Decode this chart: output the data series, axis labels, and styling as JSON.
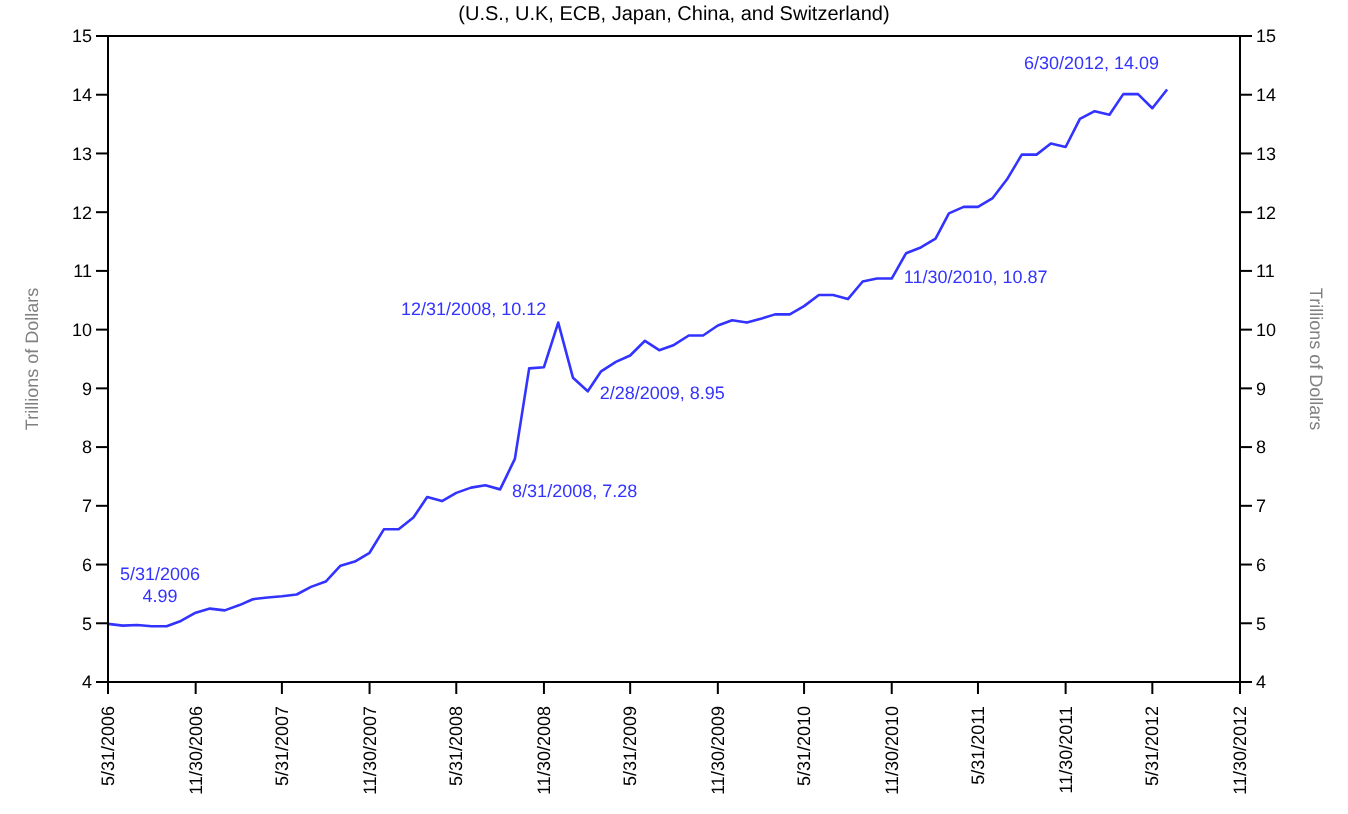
{
  "chart_data": {
    "type": "line",
    "subtitle": "(U.S., U.K, ECB, Japan, China, and Switzerland)",
    "ylabel": "Trillions of Dollars",
    "y2label": "Trillions of Dollars",
    "x": [
      "2006-05",
      "2006-06",
      "2006-07",
      "2006-08",
      "2006-09",
      "2006-10",
      "2006-11",
      "2006-12",
      "2007-01",
      "2007-02",
      "2007-03",
      "2007-04",
      "2007-05",
      "2007-06",
      "2007-07",
      "2007-08",
      "2007-09",
      "2007-10",
      "2007-11",
      "2007-12",
      "2008-01",
      "2008-02",
      "2008-03",
      "2008-04",
      "2008-05",
      "2008-06",
      "2008-07",
      "2008-08",
      "2008-09",
      "2008-10",
      "2008-11",
      "2008-12",
      "2009-01",
      "2009-02",
      "2009-03",
      "2009-04",
      "2009-05",
      "2009-06",
      "2009-07",
      "2009-08",
      "2009-09",
      "2009-10",
      "2009-11",
      "2009-12",
      "2010-01",
      "2010-02",
      "2010-03",
      "2010-04",
      "2010-05",
      "2010-06",
      "2010-07",
      "2010-08",
      "2010-09",
      "2010-10",
      "2010-11",
      "2010-12",
      "2011-01",
      "2011-02",
      "2011-03",
      "2011-04",
      "2011-05",
      "2011-06",
      "2011-07",
      "2011-08",
      "2011-09",
      "2011-10",
      "2011-11",
      "2011-12",
      "2012-01",
      "2012-02",
      "2012-03",
      "2012-04",
      "2012-05",
      "2012-06"
    ],
    "series": [
      {
        "color": "#3333ff",
        "values": [
          4.99,
          4.96,
          4.97,
          4.95,
          4.95,
          5.04,
          5.18,
          5.25,
          5.22,
          5.31,
          5.41,
          5.44,
          5.46,
          5.49,
          5.62,
          5.71,
          5.98,
          6.05,
          6.2,
          6.6,
          6.6,
          6.8,
          7.15,
          7.08,
          7.22,
          7.31,
          7.35,
          7.28,
          7.8,
          9.34,
          9.36,
          10.12,
          9.18,
          8.95,
          9.29,
          9.45,
          9.56,
          9.81,
          9.65,
          9.74,
          9.9,
          9.9,
          10.07,
          10.16,
          10.12,
          10.19,
          10.26,
          10.26,
          10.4,
          10.59,
          10.59,
          10.52,
          10.82,
          10.87,
          10.87,
          11.3,
          11.4,
          11.55,
          11.98,
          12.09,
          12.09,
          12.24,
          12.56,
          12.98,
          12.98,
          13.17,
          13.11,
          13.59,
          13.72,
          13.66,
          14.01,
          14.01,
          13.77,
          14.09
        ]
      }
    ],
    "xlim": [
      "2006-05",
      "2012-11"
    ],
    "xticks": [
      {
        "value": "2006-05",
        "label": "5/31/2006"
      },
      {
        "value": "2006-11",
        "label": "11/30/2006"
      },
      {
        "value": "2007-05",
        "label": "5/31/2007"
      },
      {
        "value": "2007-11",
        "label": "11/30/2007"
      },
      {
        "value": "2008-05",
        "label": "5/31/2008"
      },
      {
        "value": "2008-11",
        "label": "11/30/2008"
      },
      {
        "value": "2009-05",
        "label": "5/31/2009"
      },
      {
        "value": "2009-11",
        "label": "11/30/2009"
      },
      {
        "value": "2010-05",
        "label": "5/31/2010"
      },
      {
        "value": "2010-11",
        "label": "11/30/2010"
      },
      {
        "value": "2011-05",
        "label": "5/31/2011"
      },
      {
        "value": "2011-11",
        "label": "11/30/2011"
      },
      {
        "value": "2012-05",
        "label": "5/31/2012"
      },
      {
        "value": "2012-11",
        "label": "11/30/2012"
      }
    ],
    "ylim": [
      4,
      15
    ],
    "yticks": [
      4,
      5,
      6,
      7,
      8,
      9,
      10,
      11,
      12,
      13,
      14,
      15
    ],
    "y2lim": [
      4,
      15
    ],
    "y2ticks": [
      4,
      5,
      6,
      7,
      8,
      9,
      10,
      11,
      12,
      13,
      14,
      15
    ],
    "annotations": [
      {
        "text": "5/31/2006\n4.99",
        "x": "2006-05",
        "y": 4.99
      },
      {
        "text": "12/31/2008,  10.12",
        "x": "2008-12",
        "y": 10.12
      },
      {
        "text": "8/31/2008,  7.28",
        "x": "2008-08",
        "y": 7.28
      },
      {
        "text": "2/28/2009,  8.95",
        "x": "2009-02",
        "y": 8.95
      },
      {
        "text": "11/30/2010,  10.87",
        "x": "2010-11",
        "y": 10.87
      },
      {
        "text": "6/30/2012,  14.09",
        "x": "2012-06",
        "y": 14.09
      }
    ],
    "grid": false,
    "legend": false,
    "marker": "none",
    "line_style": "solid"
  }
}
